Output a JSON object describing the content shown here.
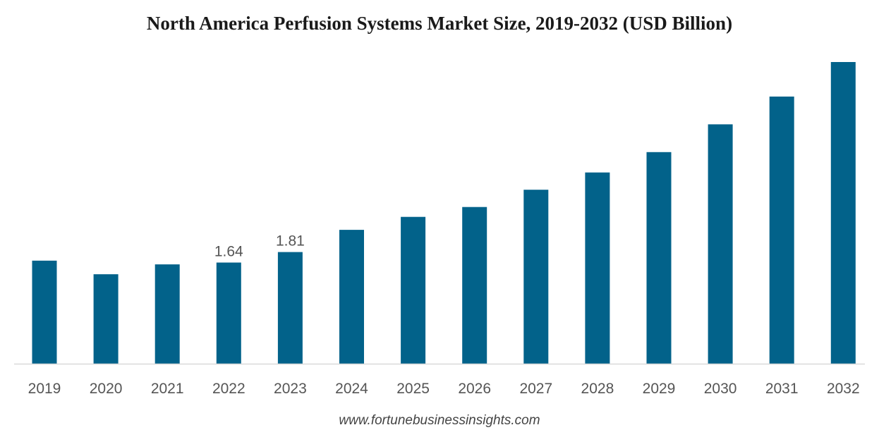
{
  "chart_data": {
    "type": "bar",
    "title": "North America Perfusion Systems Market Size, 2019-2032 (USD Billion)",
    "xlabel": "",
    "ylabel": "",
    "categories": [
      "2019",
      "2020",
      "2021",
      "2022",
      "2023",
      "2024",
      "2025",
      "2026",
      "2027",
      "2028",
      "2029",
      "2030",
      "2031",
      "2032"
    ],
    "values": [
      1.67,
      1.45,
      1.61,
      1.64,
      1.81,
      2.17,
      2.38,
      2.54,
      2.82,
      3.1,
      3.43,
      3.88,
      4.33,
      4.89
    ],
    "data_labels": {
      "2022": "1.64",
      "2023": "1.81"
    },
    "ylim": [
      0,
      5.0
    ],
    "grid": false,
    "legend": "none",
    "colors": {
      "bar": "#02628a",
      "axis": "#d9d9d9"
    }
  },
  "footer": {
    "source": "www.fortunebusinessinsights.com"
  }
}
